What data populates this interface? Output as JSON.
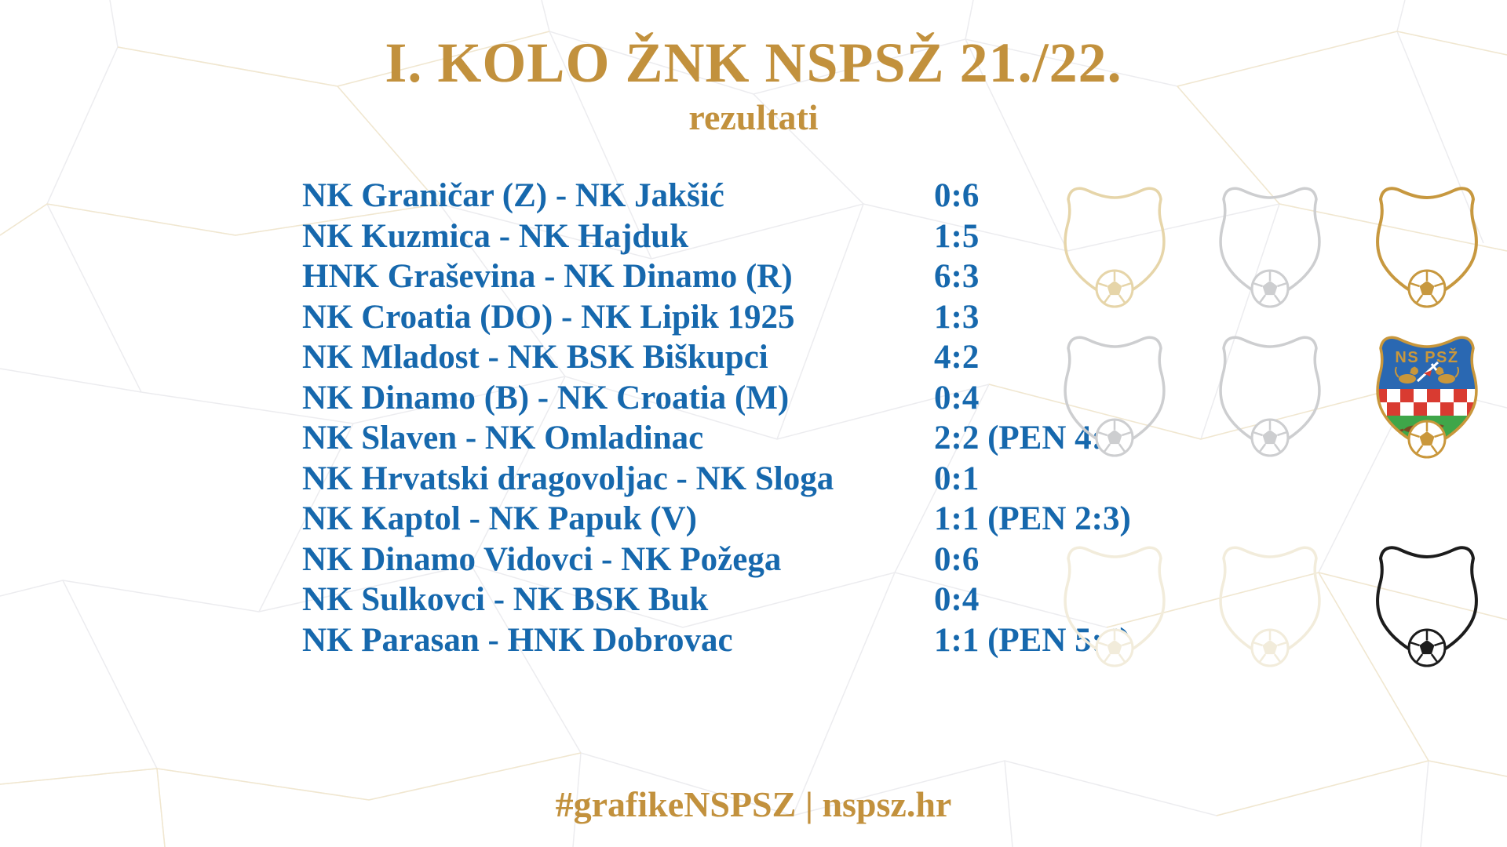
{
  "header": {
    "title": "I. KOLO ŽNK NSPSŽ 21./22.",
    "subtitle": "rezultati"
  },
  "results": [
    {
      "match": "NK Graničar (Z) - NK Jakšić",
      "score": "0:6"
    },
    {
      "match": "NK Kuzmica - NK Hajduk",
      "score": "1:5"
    },
    {
      "match": "HNK Graševina - NK Dinamo (R)",
      "score": "6:3"
    },
    {
      "match": "NK Croatia (DO) - NK Lipik 1925",
      "score": "1:3"
    },
    {
      "match": "NK Mladost - NK BSK Biškupci",
      "score": "4:2"
    },
    {
      "match": "NK Dinamo (B) - NK Croatia (M)",
      "score": "0:4"
    },
    {
      "match": "NK Slaven - NK Omladinac",
      "score": "2:2 (PEN 4:5)"
    },
    {
      "match": "NK Hrvatski dragovoljac - NK Sloga",
      "score": "0:1"
    },
    {
      "match": "NK Kaptol - NK Papuk (V)",
      "score": "1:1 (PEN 2:3)"
    },
    {
      "match": "NK Dinamo Vidovci - NK Požega",
      "score": "0:6"
    },
    {
      "match": "NK Sulkovci - NK BSK Buk",
      "score": "0:4"
    },
    {
      "match": "NK Parasan - HNK Dobrovac",
      "score": "1:1 (PEN 5:4)"
    }
  ],
  "footer": {
    "hashtag_line": "#grafikeNSPSZ | nspsz.hr"
  },
  "crest": {
    "label": "NS PSŽ"
  },
  "shields": [
    {
      "variant": "tan"
    },
    {
      "variant": "gray"
    },
    {
      "variant": "gold"
    },
    {
      "variant": "gray"
    },
    {
      "variant": "gray"
    },
    {
      "variant": "crest"
    },
    {
      "variant": "faint"
    },
    {
      "variant": "faint"
    },
    {
      "variant": "black"
    }
  ],
  "colors": {
    "gold": "#c2913d",
    "blue": "#1668ad",
    "badge_tan": "#e6d5a9",
    "badge_gray": "#cdced0",
    "badge_gold": "#c7983f",
    "badge_faint": "#f2ecdb",
    "badge_black": "#1c1c1c",
    "crest_blue": "#2a68b2",
    "crest_green": "#3fa649",
    "crest_red": "#d93b31",
    "crest_gold": "#c9973b"
  }
}
